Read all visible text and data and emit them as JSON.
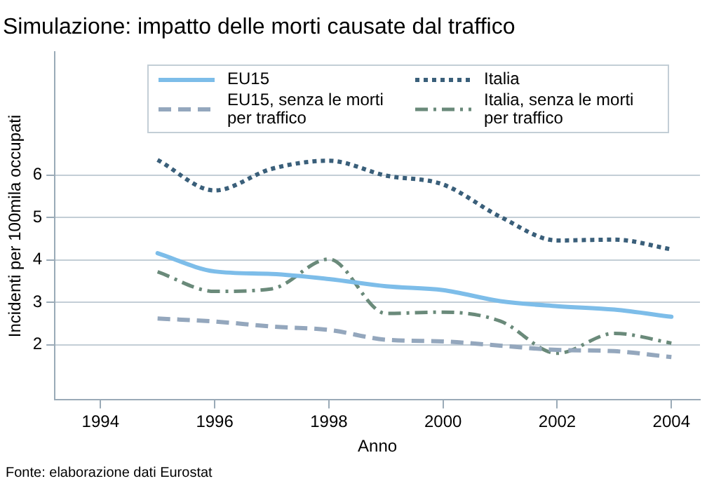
{
  "chart_data": {
    "type": "line",
    "title": "Simulazione: impatto delle morti causate dal traffico",
    "xlabel": "Anno",
    "ylabel": "Incidenti per 100mila occupati",
    "annotations": [
      "Fonte: elaborazione dati Eurostat"
    ],
    "x": [
      1995,
      1996,
      1997,
      1998,
      1999,
      2000,
      2001,
      2002,
      2003,
      2004
    ],
    "series": [
      {
        "name": "EU15",
        "color": "#7dbde9",
        "line_style": "solid",
        "values": [
          4.16,
          3.73,
          3.67,
          3.55,
          3.38,
          3.29,
          3.03,
          2.91,
          2.83,
          2.66
        ]
      },
      {
        "name": "Italia",
        "color": "#3a5f7a",
        "line_style": "dotted",
        "values": [
          6.36,
          5.64,
          6.15,
          6.34,
          5.99,
          5.78,
          5.02,
          4.46,
          4.48,
          4.25
        ]
      },
      {
        "name": "EU15, senza le morti per traffico",
        "color": "#94a7bd",
        "line_style": "dashed",
        "values": [
          2.62,
          2.55,
          2.43,
          2.35,
          2.12,
          2.08,
          1.98,
          1.88,
          1.85,
          1.71
        ]
      },
      {
        "name": "Italia, senza le morti per traffico",
        "color": "#6a8a7a",
        "line_style": "dashdot",
        "values": [
          3.72,
          3.26,
          3.32,
          4.02,
          2.74,
          2.77,
          2.56,
          1.8,
          2.27,
          2.04
        ]
      }
    ],
    "xlim": [
      1993.2,
      2004.5
    ],
    "xticks": [
      1994,
      1996,
      1998,
      2000,
      2002,
      2004
    ],
    "ylim": [
      0.7,
      8.9
    ],
    "yticks": [
      2,
      3,
      4,
      5,
      6
    ],
    "grid": "y",
    "legend": "top",
    "marker": "none"
  }
}
